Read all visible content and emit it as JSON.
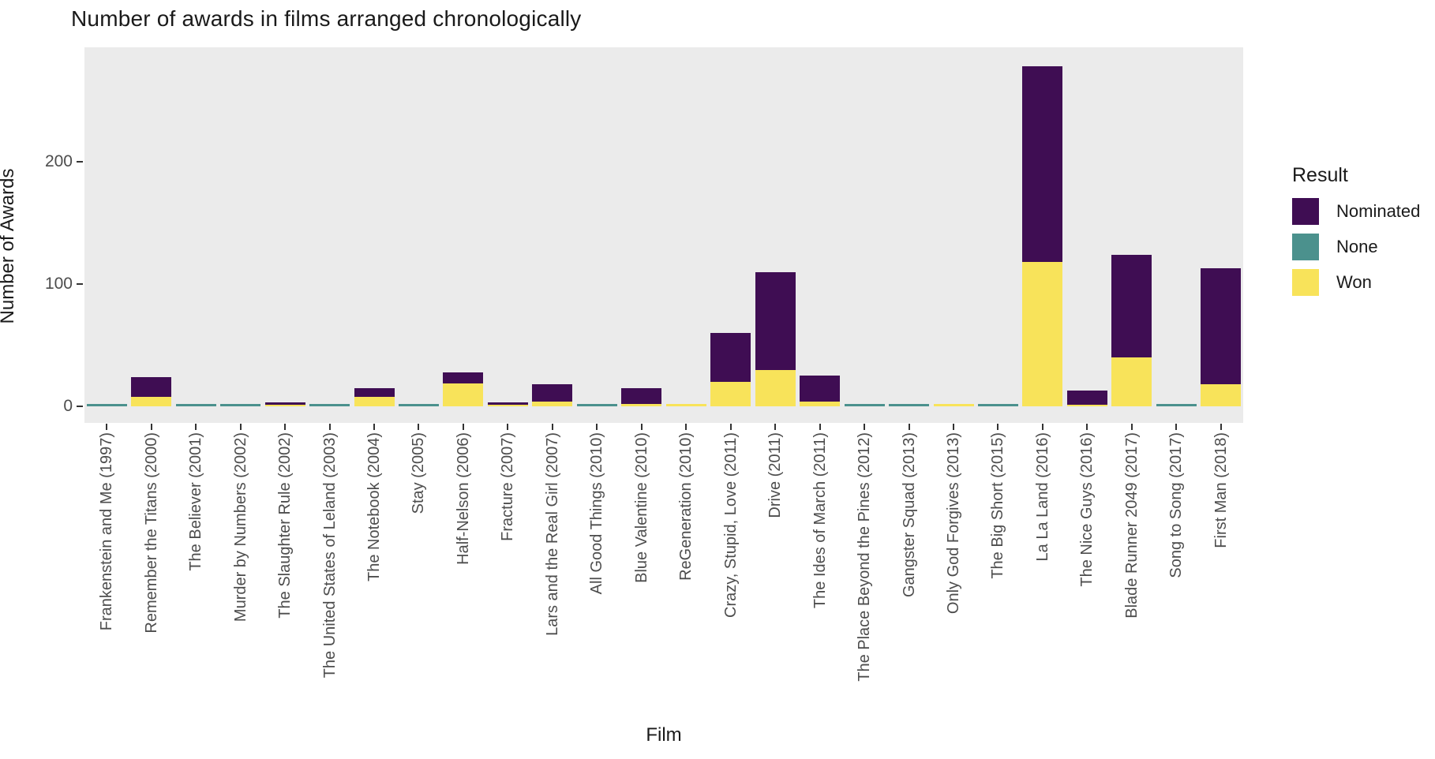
{
  "chart_data": {
    "type": "bar",
    "stacked": true,
    "title": "Number of awards in films arranged chronologically",
    "xlabel": "Film",
    "ylabel": "Number of Awards",
    "yticks": [
      0,
      100,
      200
    ],
    "ylim": [
      0,
      293
    ],
    "grid": false,
    "panel_background": "#EBEBEB",
    "axis_text_color": "#4D4D4D",
    "categories": [
      "Frankenstein and Me (1997)",
      "Remember the Titans (2000)",
      "The Believer (2001)",
      "Murder by Numbers (2002)",
      "The Slaughter Rule (2002)",
      "The United States of Leland (2003)",
      "The Notebook (2004)",
      "Stay (2005)",
      "Half-Nelson (2006)",
      "Fracture (2007)",
      "Lars and the Real Girl (2007)",
      "All Good Things (2010)",
      "Blue Valentine (2010)",
      "ReGeneration (2010)",
      "Crazy, Stupid, Love (2011)",
      "Drive (2011)",
      "The Ides of March (2011)",
      "The Place Beyond the Pines (2012)",
      "Gangster Squad (2013)",
      "Only God Forgives (2013)",
      "The Big Short (2015)",
      "La La Land (2016)",
      "The Nice Guys (2016)",
      "Blade Runner 2049 (2017)",
      "Song to Song (2017)",
      "First Man (2018)"
    ],
    "series": [
      {
        "name": "Won",
        "color": "#F8E35A",
        "values": [
          0,
          8,
          0,
          0,
          1,
          0,
          8,
          0,
          19,
          1,
          4,
          0,
          2,
          1,
          20,
          30,
          4,
          0,
          0,
          1,
          0,
          118,
          1,
          40,
          0,
          18
        ]
      },
      {
        "name": "None",
        "color": "#4B918D",
        "values": [
          2,
          0,
          2,
          2,
          0,
          2,
          0,
          2,
          0,
          0,
          0,
          2,
          0,
          0,
          0,
          0,
          0,
          2,
          2,
          0,
          2,
          0,
          0,
          0,
          2,
          0
        ]
      },
      {
        "name": "Nominated",
        "color": "#3F0D53",
        "values": [
          0,
          16,
          0,
          0,
          2,
          0,
          7,
          0,
          9,
          2,
          14,
          0,
          13,
          0,
          40,
          80,
          21,
          0,
          0,
          0,
          0,
          160,
          12,
          84,
          0,
          95
        ]
      }
    ],
    "stack_order_bottom_to_top": [
      "Won",
      "None",
      "Nominated"
    ],
    "legend": {
      "title": "Result",
      "position": "right",
      "entries": [
        {
          "label": "Nominated",
          "color": "#3F0D53"
        },
        {
          "label": "None",
          "color": "#4B918D"
        },
        {
          "label": "Won",
          "color": "#F8E35A"
        }
      ]
    }
  }
}
